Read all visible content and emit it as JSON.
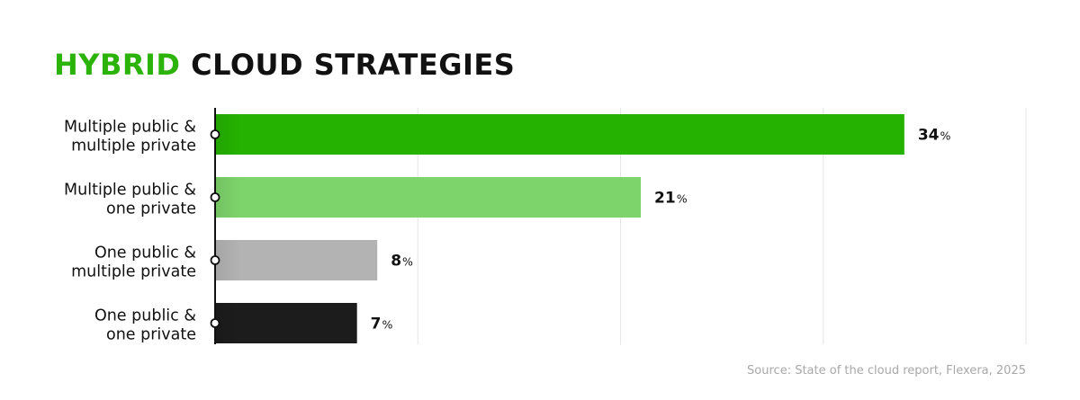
{
  "title": {
    "highlight": "HYBRID",
    "rest": "CLOUD STRATEGIES"
  },
  "chart_data": {
    "type": "bar",
    "orientation": "horizontal",
    "categories": [
      [
        "Multiple public &",
        "multiple private"
      ],
      [
        "Multiple public &",
        "one private"
      ],
      [
        "One public &",
        "multiple private"
      ],
      [
        "One public &",
        "one private"
      ]
    ],
    "values": [
      34,
      21,
      8,
      7
    ],
    "value_labels": [
      {
        "num": "34",
        "unit": "%"
      },
      {
        "num": "21",
        "unit": "%"
      },
      {
        "num": "8",
        "unit": "%"
      },
      {
        "num": "7",
        "unit": "%"
      }
    ],
    "bar_colors": [
      "#25b200",
      "#7dd46a",
      "#b3b3b3",
      "#1c1c1c"
    ],
    "xlim": [
      0,
      40
    ],
    "grid": true,
    "source": "Source: State of the cloud report, Flexera, 2025"
  },
  "colors": {
    "accent": "#2bb30a",
    "title": "#111111",
    "grid": "#e6e6e6",
    "axis": "#111111",
    "source_text": "#a8a8a8"
  }
}
